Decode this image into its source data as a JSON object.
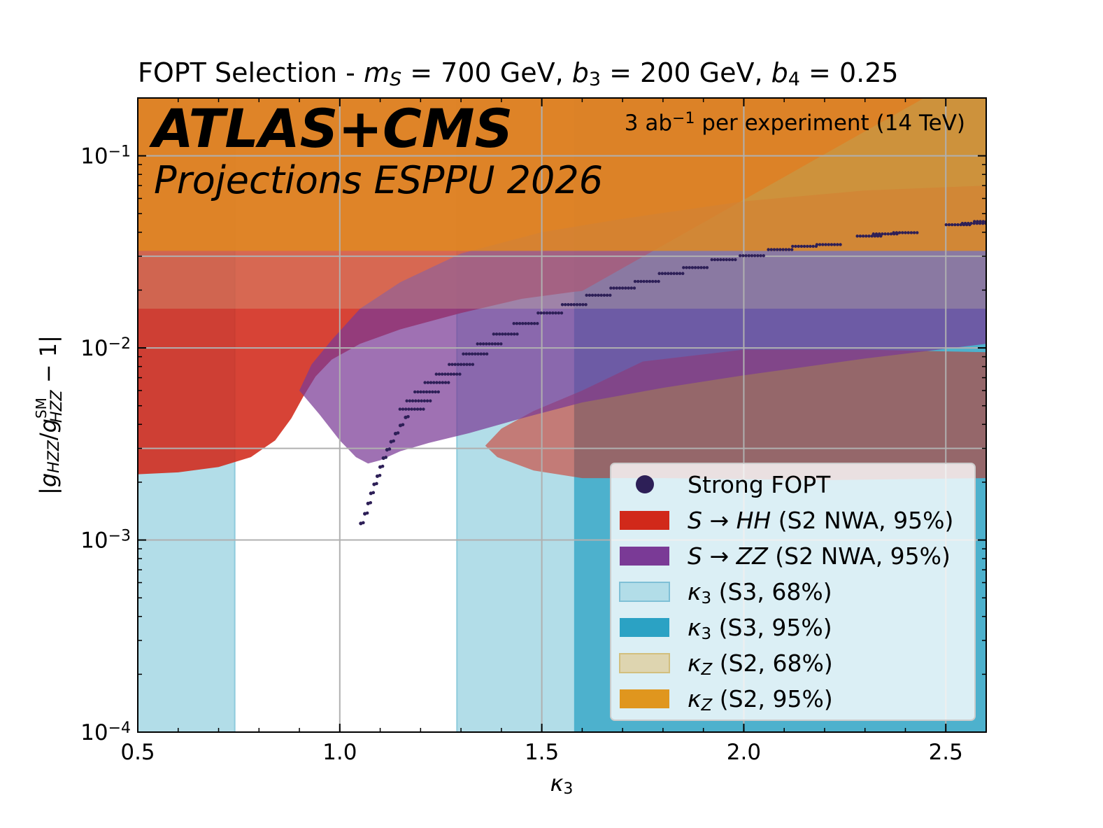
{
  "chart_data": {
    "type": "scatter",
    "title": "FOPT Selection - m_S = 700 GeV, b_3 = 200 GeV, b_4 = 0.25",
    "title_parts": [
      {
        "t": "FOPT Selection - ",
        "i": false
      },
      {
        "t": "m",
        "i": true
      },
      {
        "t": "S",
        "i": true,
        "sub": true
      },
      {
        "t": " = 700 GeV, ",
        "i": false
      },
      {
        "t": "b",
        "i": true
      },
      {
        "t": "3",
        "i": false,
        "sub": true
      },
      {
        "t": " = 200 GeV, ",
        "i": false
      },
      {
        "t": "b",
        "i": true
      },
      {
        "t": "4",
        "i": false,
        "sub": true
      },
      {
        "t": " = 0.25",
        "i": false
      }
    ],
    "banner": {
      "experiment": "ATLAS+CMS",
      "subtitle": "Projections ESPPU 2026"
    },
    "lumi_text": {
      "pre": "3 ab",
      "sup": "−1",
      "post": "  per experiment (14 TeV)"
    },
    "xlabel": "κ3",
    "xlabel_parts": [
      {
        "t": "κ",
        "i": true
      },
      {
        "t": "3",
        "i": false,
        "sub": true
      }
    ],
    "ylabel": "|g_HZZ/g_HZZ^SM − 1|",
    "xlim": [
      0.5,
      2.6
    ],
    "ylim": [
      0.0001,
      0.2
    ],
    "yscale": "log",
    "x_ticks": [
      {
        "v": 0.5,
        "label": "0.5"
      },
      {
        "v": 1.0,
        "label": "1.0"
      },
      {
        "v": 1.5,
        "label": "1.5"
      },
      {
        "v": 2.0,
        "label": "2.0"
      },
      {
        "v": 2.5,
        "label": "2.5"
      }
    ],
    "y_ticks": [
      {
        "v": 0.0001,
        "exp": "−4"
      },
      {
        "v": 0.001,
        "exp": "−3"
      },
      {
        "v": 0.01,
        "exp": "−2"
      },
      {
        "v": 0.1,
        "exp": "−1"
      }
    ],
    "grid": true,
    "colors": {
      "kz95": "#e08a1e",
      "kz68": "#d9ca9a",
      "k3_68": "#b2dde8",
      "k3_95": "#2ba2c4",
      "s_hh": "#d1291a",
      "s_zz": "#7a3a96",
      "points": "#2d1f57"
    },
    "regions": {
      "kz_68_above": 0.016,
      "kz_95_above": 0.032,
      "k3_68_outside": [
        0.74,
        1.29
      ],
      "k3_95_above": 1.58
    },
    "s_hh_boundary": [
      [
        0.5,
        0.0022
      ],
      [
        0.6,
        0.00225
      ],
      [
        0.7,
        0.0024
      ],
      [
        0.78,
        0.0027
      ],
      [
        0.84,
        0.0033
      ],
      [
        0.88,
        0.0043
      ],
      [
        0.91,
        0.0056
      ],
      [
        0.94,
        0.0071
      ],
      [
        0.98,
        0.0087
      ],
      [
        1.05,
        0.0105
      ],
      [
        1.15,
        0.0125
      ],
      [
        1.3,
        0.0152
      ],
      [
        1.45,
        0.018
      ],
      [
        1.58,
        0.0196
      ],
      [
        1.6,
        0.0198
      ]
    ],
    "s_hh_lobe": [
      [
        1.6,
        0.006
      ],
      [
        1.75,
        0.0085
      ],
      [
        2.0,
        0.0098
      ],
      [
        2.3,
        0.0098
      ],
      [
        2.6,
        0.0095
      ],
      [
        2.6,
        0.0021
      ],
      [
        2.2,
        0.00205
      ],
      [
        1.8,
        0.0021
      ],
      [
        1.6,
        0.0021
      ],
      [
        1.48,
        0.0023
      ],
      [
        1.39,
        0.0027
      ],
      [
        1.36,
        0.0031
      ],
      [
        1.4,
        0.0038
      ],
      [
        1.48,
        0.0047
      ]
    ],
    "s_zz_lower": [
      [
        0.9,
        0.006
      ],
      [
        0.95,
        0.0045
      ],
      [
        1.0,
        0.0033
      ],
      [
        1.04,
        0.0027
      ],
      [
        1.07,
        0.0025
      ],
      [
        1.1,
        0.0026
      ],
      [
        1.15,
        0.0029
      ],
      [
        1.22,
        0.0032
      ],
      [
        1.32,
        0.0036
      ],
      [
        1.45,
        0.0043
      ],
      [
        1.6,
        0.0052
      ],
      [
        1.8,
        0.0062
      ],
      [
        2.0,
        0.0072
      ],
      [
        2.3,
        0.0088
      ],
      [
        2.6,
        0.0105
      ]
    ],
    "s_zz_upper": [
      [
        2.6,
        0.07
      ],
      [
        2.3,
        0.066
      ],
      [
        2.0,
        0.058
      ],
      [
        1.7,
        0.047
      ],
      [
        1.5,
        0.04
      ],
      [
        1.3,
        0.031
      ],
      [
        1.15,
        0.022
      ],
      [
        1.05,
        0.016
      ],
      [
        0.98,
        0.011
      ],
      [
        0.93,
        0.0082
      ],
      [
        0.9,
        0.006
      ]
    ],
    "series": [
      {
        "name": "Strong FOPT",
        "points": [
          [
            1.052,
            0.00122
          ],
          [
            1.062,
            0.00137
          ],
          [
            1.07,
            0.00155
          ],
          [
            1.077,
            0.00175
          ],
          [
            1.085,
            0.00195
          ],
          [
            1.093,
            0.00215
          ],
          [
            1.1,
            0.0024
          ],
          [
            1.108,
            0.00267
          ],
          [
            1.117,
            0.00295
          ],
          [
            1.127,
            0.00325
          ],
          [
            1.138,
            0.00358
          ],
          [
            1.15,
            0.00395
          ],
          [
            1.163,
            0.00435
          ],
          [
            1.178,
            0.0048
          ],
          [
            1.195,
            0.0053
          ],
          [
            1.215,
            0.0059
          ],
          [
            1.24,
            0.0066
          ],
          [
            1.268,
            0.0073
          ],
          [
            1.3,
            0.0082
          ],
          [
            1.335,
            0.0093
          ],
          [
            1.37,
            0.0105
          ],
          [
            1.41,
            0.0118
          ],
          [
            1.46,
            0.0134
          ],
          [
            1.52,
            0.0152
          ],
          [
            1.58,
            0.0168
          ],
          [
            1.64,
            0.0188
          ],
          [
            1.7,
            0.0205
          ],
          [
            1.76,
            0.0222
          ],
          [
            1.82,
            0.0244
          ],
          [
            1.88,
            0.0262
          ],
          [
            1.95,
            0.0288
          ],
          [
            2.02,
            0.0302
          ],
          [
            2.09,
            0.0325
          ],
          [
            2.15,
            0.0338
          ],
          [
            2.21,
            0.0345
          ],
          [
            2.31,
            0.0382
          ],
          [
            2.35,
            0.0392
          ],
          [
            2.4,
            0.0398
          ],
          [
            2.53,
            0.0438
          ],
          [
            2.57,
            0.0445
          ],
          [
            2.6,
            0.0455
          ]
        ]
      }
    ],
    "legend": {
      "location": "lower-right",
      "entries": [
        {
          "kind": "marker",
          "color": "#2d1f57",
          "parts": [
            {
              "t": "Strong FOPT",
              "i": false
            }
          ]
        },
        {
          "kind": "patch",
          "color": "#d1291a",
          "parts": [
            {
              "t": "S",
              "i": true
            },
            {
              "t": " → ",
              "i": false
            },
            {
              "t": "HH",
              "i": true
            },
            {
              "t": "  (S2 NWA, 95%)",
              "i": false
            }
          ]
        },
        {
          "kind": "patch",
          "color": "#7a3a96",
          "parts": [
            {
              "t": "S",
              "i": true
            },
            {
              "t": " → ",
              "i": false
            },
            {
              "t": "ZZ",
              "i": true
            },
            {
              "t": "  (S2 NWA, 95%)",
              "i": false
            }
          ]
        },
        {
          "kind": "patch",
          "color": "#b2dde8",
          "edge": "#7fc0d6",
          "parts": [
            {
              "t": "κ",
              "i": true
            },
            {
              "t": "3",
              "i": false,
              "sub": true
            },
            {
              "t": "  (S3, 68%)",
              "i": false
            }
          ]
        },
        {
          "kind": "patch",
          "color": "#2ba2c4",
          "parts": [
            {
              "t": "κ",
              "i": true
            },
            {
              "t": "3",
              "i": false,
              "sub": true
            },
            {
              "t": "  (S3, 95%)",
              "i": false
            }
          ]
        },
        {
          "kind": "patch",
          "color": "#ded5b0",
          "edge": "#d2bf7e",
          "parts": [
            {
              "t": "κ",
              "i": true
            },
            {
              "t": "Z",
              "i": true,
              "sub": true
            },
            {
              "t": "  (S2, 68%)",
              "i": false
            }
          ]
        },
        {
          "kind": "patch",
          "color": "#e0961e",
          "parts": [
            {
              "t": "κ",
              "i": true
            },
            {
              "t": "Z",
              "i": true,
              "sub": true
            },
            {
              "t": "  (S2, 95%)",
              "i": false
            }
          ]
        }
      ]
    }
  }
}
